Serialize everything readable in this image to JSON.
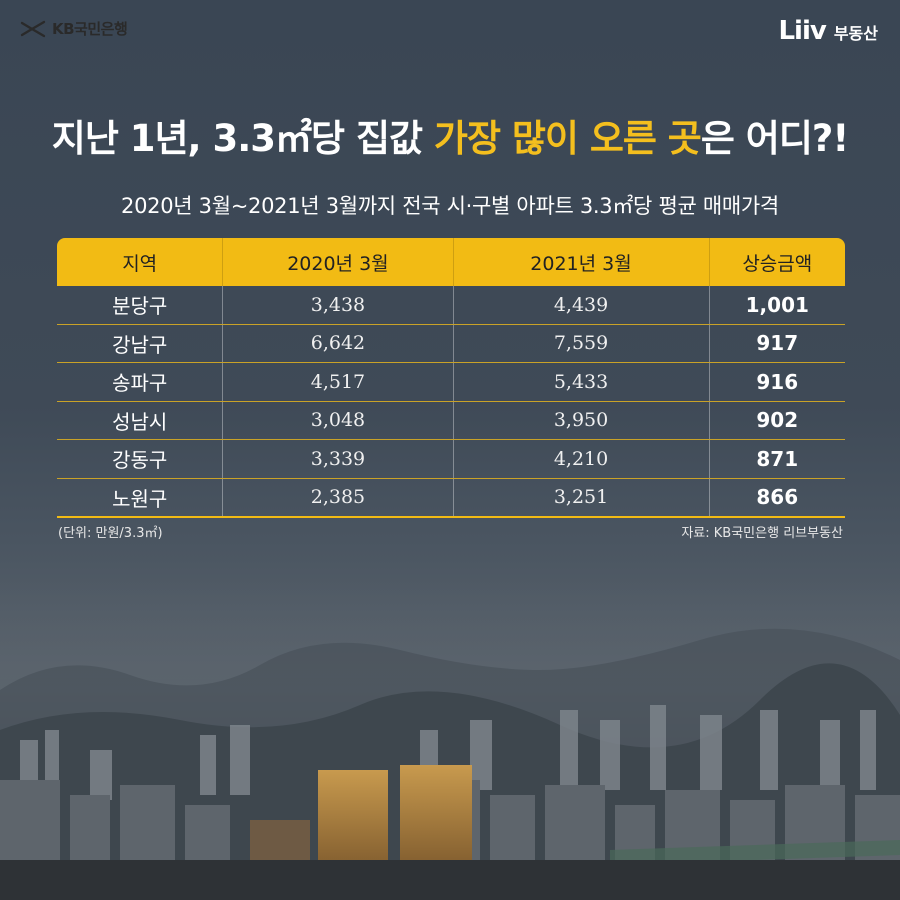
{
  "brand": {
    "left_logo_text": "KB국민은행",
    "right_logo_mark": "Liiv",
    "right_logo_text": "부동산"
  },
  "headline": {
    "part1": "지난 1년, 3.3㎡당 집값 ",
    "highlight": "가장 많이 오른 곳",
    "part2": "은 어디?!"
  },
  "subtitle": "2020년 3월~2021년 3월까지 전국 시·구별 아파트 3.3㎡당 평균 매매가격",
  "table": {
    "headers": [
      "지역",
      "2020년 3월",
      "2021년 3월",
      "상승금액"
    ],
    "rows": [
      {
        "region": "분당구",
        "y2020": "3,438",
        "y2021": "4,439",
        "increase": "1,001"
      },
      {
        "region": "강남구",
        "y2020": "6,642",
        "y2021": "7,559",
        "increase": "917"
      },
      {
        "region": "송파구",
        "y2020": "4,517",
        "y2021": "5,433",
        "increase": "916"
      },
      {
        "region": "성남시",
        "y2020": "3,048",
        "y2021": "3,950",
        "increase": "902"
      },
      {
        "region": "강동구",
        "y2020": "3,339",
        "y2021": "4,210",
        "increase": "871"
      },
      {
        "region": "노원구",
        "y2020": "2,385",
        "y2021": "3,251",
        "increase": "866"
      }
    ]
  },
  "footer": {
    "unit": "(단위: 만원/3.3㎡)",
    "source": "자료: KB국민은행 리브부동산"
  },
  "colors": {
    "accent": "#f2bb14",
    "headline_highlight": "#f4bf1e",
    "background": "#3f4a57"
  }
}
